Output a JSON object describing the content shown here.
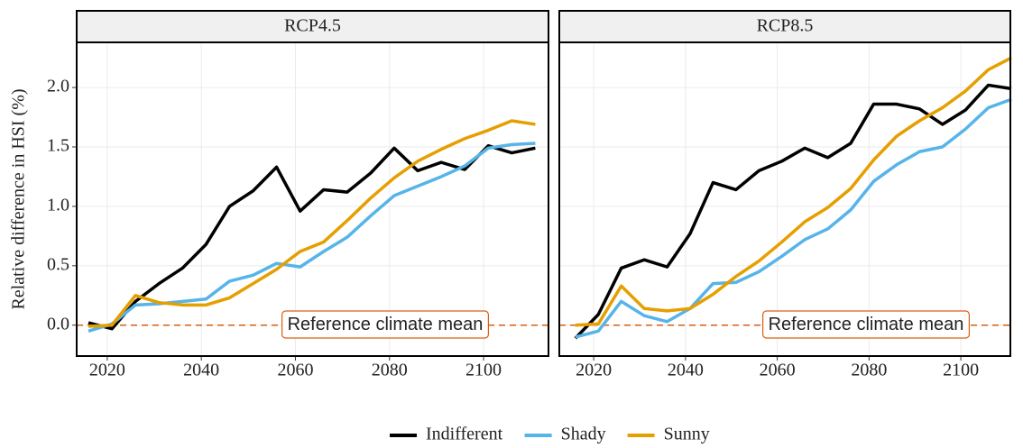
{
  "chart_data": [
    {
      "type": "line",
      "title": "RCP4.5",
      "ylabel": "Relative difference in HSI (%)",
      "x": [
        2016,
        2021,
        2026,
        2031,
        2036,
        2041,
        2046,
        2051,
        2056,
        2061,
        2066,
        2071,
        2076,
        2081,
        2086,
        2091,
        2096,
        2101,
        2106,
        2111
      ],
      "series": [
        {
          "name": "Indifferent",
          "color": "#000000",
          "values": [
            0.02,
            -0.03,
            0.2,
            0.35,
            0.48,
            0.68,
            1.0,
            1.13,
            1.33,
            0.96,
            1.14,
            1.12,
            1.28,
            1.49,
            1.3,
            1.37,
            1.31,
            1.51,
            1.45,
            1.49
          ]
        },
        {
          "name": "Shady",
          "color": "#56b4e9",
          "values": [
            -0.05,
            0.01,
            0.17,
            0.18,
            0.2,
            0.22,
            0.37,
            0.42,
            0.52,
            0.49,
            0.62,
            0.74,
            0.92,
            1.09,
            1.17,
            1.25,
            1.34,
            1.49,
            1.52,
            1.53
          ]
        },
        {
          "name": "Sunny",
          "color": "#e69f00",
          "values": [
            -0.01,
            0.0,
            0.25,
            0.19,
            0.17,
            0.17,
            0.23,
            0.35,
            0.47,
            0.62,
            0.7,
            0.88,
            1.07,
            1.24,
            1.38,
            1.48,
            1.57,
            1.64,
            1.72,
            1.69
          ]
        }
      ],
      "reference_line": 0,
      "reference_color": "#d95f0e",
      "annotation": "Reference climate mean",
      "xlim": [
        2013.5,
        2113.8
      ],
      "xticks": [
        2020,
        2040,
        2060,
        2080,
        2100
      ],
      "ylim": [
        -0.26,
        2.38
      ],
      "yticks": [
        {
          "value": 0,
          "label": "0.0"
        },
        0.5,
        {
          "value": 1,
          "label": "1.0"
        },
        1.5,
        {
          "value": 2,
          "label": "2.0"
        }
      ],
      "grid": true
    },
    {
      "type": "line",
      "title": "RCP8.5",
      "x": [
        2016,
        2021,
        2026,
        2031,
        2036,
        2041,
        2046,
        2051,
        2056,
        2061,
        2066,
        2071,
        2076,
        2081,
        2086,
        2091,
        2096,
        2101,
        2106,
        2111
      ],
      "series": [
        {
          "name": "Indifferent",
          "color": "#000000",
          "values": [
            -0.11,
            0.09,
            0.48,
            0.55,
            0.49,
            0.77,
            1.2,
            1.14,
            1.3,
            1.38,
            1.49,
            1.41,
            1.53,
            1.86,
            1.86,
            1.82,
            1.69,
            1.81,
            2.02,
            1.99
          ]
        },
        {
          "name": "Shady",
          "color": "#56b4e9",
          "values": [
            -0.1,
            -0.05,
            0.2,
            0.08,
            0.03,
            0.14,
            0.35,
            0.36,
            0.45,
            0.58,
            0.72,
            0.81,
            0.97,
            1.21,
            1.35,
            1.46,
            1.5,
            1.65,
            1.83,
            1.9
          ]
        },
        {
          "name": "Sunny",
          "color": "#e69f00",
          "values": [
            0.0,
            0.01,
            0.33,
            0.14,
            0.12,
            0.14,
            0.26,
            0.41,
            0.54,
            0.7,
            0.87,
            0.99,
            1.15,
            1.39,
            1.59,
            1.72,
            1.83,
            1.97,
            2.15,
            2.25
          ]
        }
      ],
      "reference_line": 0,
      "reference_color": "#d95f0e",
      "annotation": "Reference climate mean",
      "xlim": [
        2012.5,
        2110.8
      ],
      "xticks": [
        2020,
        2040,
        2060,
        2080,
        2100
      ],
      "ylim": [
        -0.26,
        2.38
      ],
      "yticks": [
        0,
        0.5,
        1,
        1.5,
        2
      ],
      "grid": true
    }
  ]
}
